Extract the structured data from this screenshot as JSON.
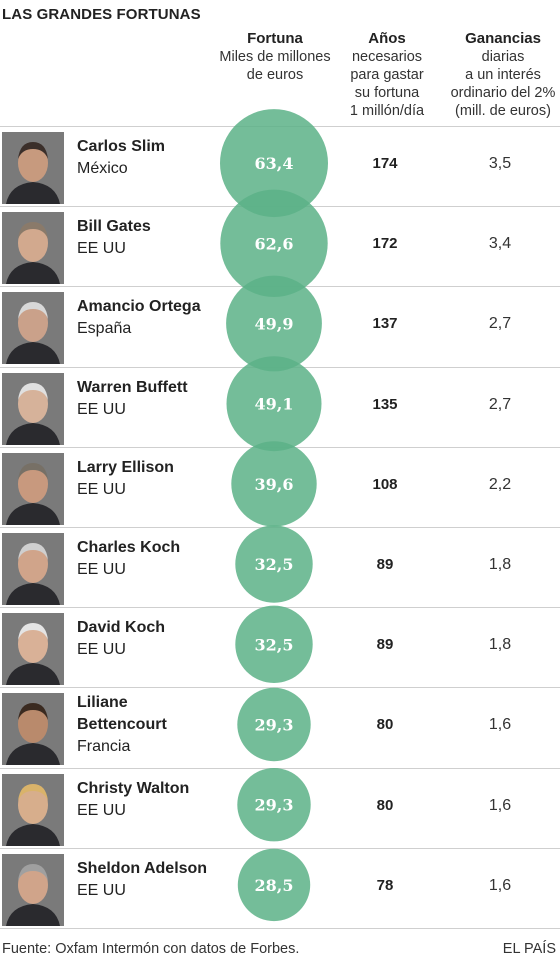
{
  "title": "LAS GRANDES FORTUNAS",
  "headers": {
    "fortuna": {
      "title": "Fortuna",
      "lines": [
        "Miles de millones",
        "de euros"
      ]
    },
    "anos": {
      "title": "Años",
      "lines": [
        "necesarios",
        "para gastar",
        "su fortuna",
        "1 millón/día"
      ]
    },
    "ganancias": {
      "title": "Ganancias",
      "lines": [
        "diarias",
        "a un interés",
        "ordinario del 2%",
        "(mill. de euros)"
      ]
    }
  },
  "chart_data": {
    "type": "table",
    "title": "LAS GRANDES FORTUNAS",
    "bubble_color": "#5cb287",
    "columns": [
      "Fortuna",
      "Años",
      "Ganancias"
    ],
    "rows": [
      {
        "name": "Carlos Slim",
        "country": "México",
        "fortuna": 63.4,
        "fortuna_label": "63,4",
        "years": "174",
        "gain": "3,5"
      },
      {
        "name": "Bill Gates",
        "country": "EE UU",
        "fortuna": 62.6,
        "fortuna_label": "62,6",
        "years": "172",
        "gain": "3,4"
      },
      {
        "name": "Amancio Ortega",
        "country": "España",
        "fortuna": 49.9,
        "fortuna_label": "49,9",
        "years": "137",
        "gain": "2,7"
      },
      {
        "name": "Warren Buffett",
        "country": "EE UU",
        "fortuna": 49.1,
        "fortuna_label": "49,1",
        "years": "135",
        "gain": "2,7"
      },
      {
        "name": "Larry Ellison",
        "country": "EE UU",
        "fortuna": 39.6,
        "fortuna_label": "39,6",
        "years": "108",
        "gain": "2,2"
      },
      {
        "name": "Charles Koch",
        "country": "EE UU",
        "fortuna": 32.5,
        "fortuna_label": "32,5",
        "years": "89",
        "gain": "1,8"
      },
      {
        "name": "David Koch",
        "country": "EE UU",
        "fortuna": 32.5,
        "fortuna_label": "32,5",
        "years": "89",
        "gain": "1,8"
      },
      {
        "name_lines": [
          "Liliane",
          "Bettencourt"
        ],
        "country": "Francia",
        "fortuna": 29.3,
        "fortuna_label": "29,3",
        "years": "80",
        "gain": "1,6"
      },
      {
        "name": "Christy Walton",
        "country": "EE UU",
        "fortuna": 29.3,
        "fortuna_label": "29,3",
        "years": "80",
        "gain": "1,6"
      },
      {
        "name": "Sheldon Adelson",
        "country": "EE UU",
        "fortuna": 28.5,
        "fortuna_label": "28,5",
        "years": "78",
        "gain": "1,6"
      }
    ]
  },
  "footer": {
    "source": "Fuente: Oxfam Intermón con datos de Forbes.",
    "brand": "EL PAÍS"
  }
}
